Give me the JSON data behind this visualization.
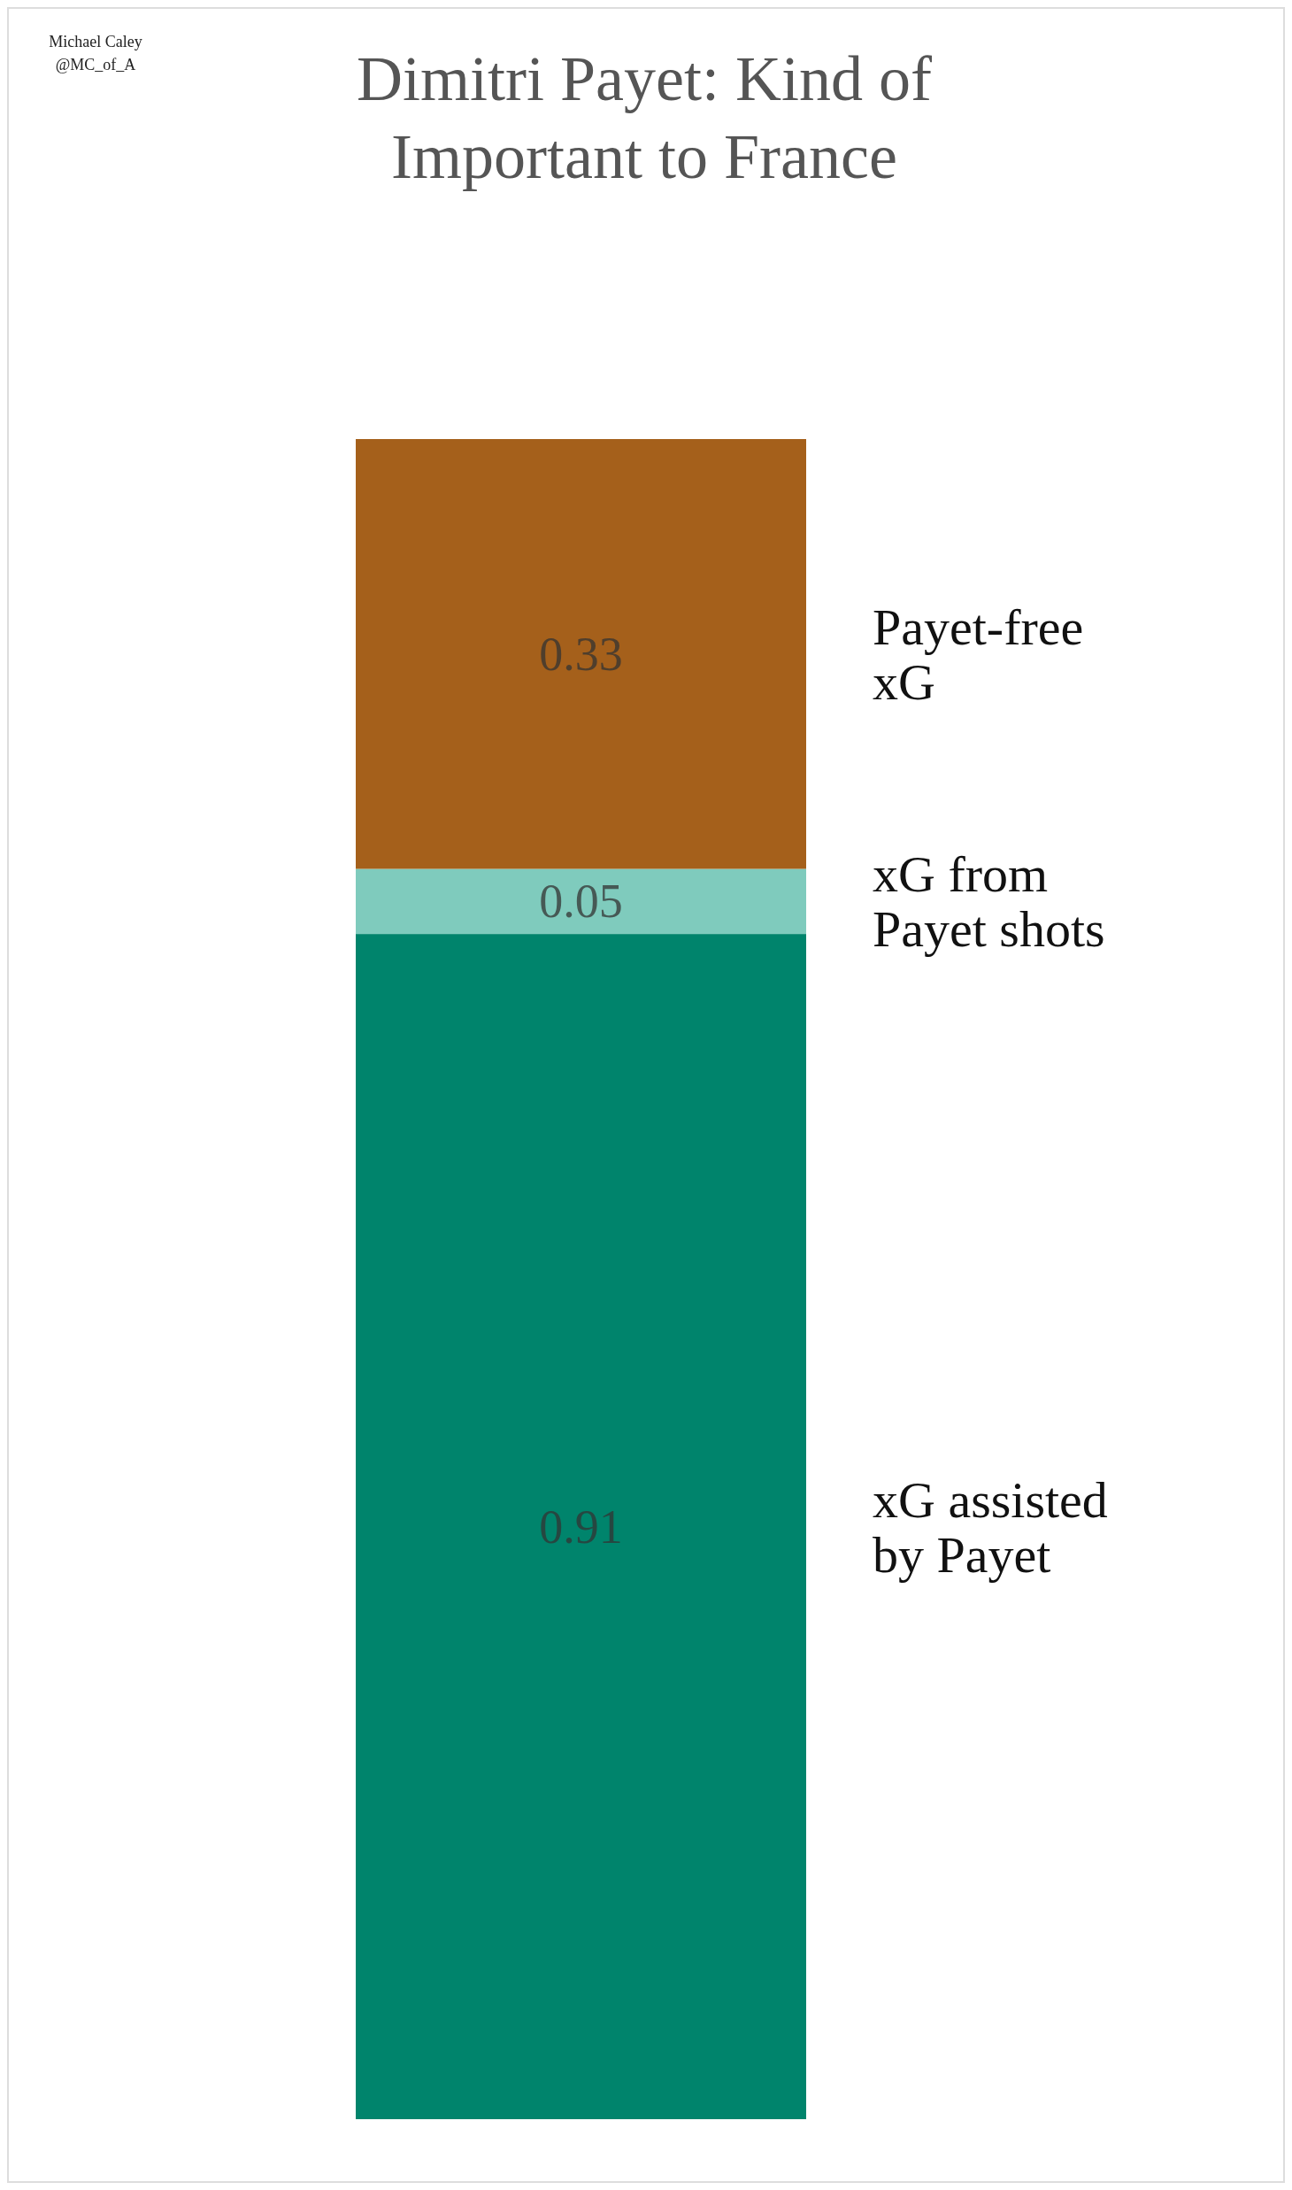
{
  "chart_data": {
    "type": "bar",
    "title": "Dimitri Payet: Kind of Important to France",
    "categories": [
      null
    ],
    "stacked": true,
    "data_labels": true,
    "series": [
      {
        "name": "xG assisted by Payet",
        "color": "#00846c",
        "values": [
          0.91
        ]
      },
      {
        "name": "xG from Payet shots",
        "color": "#7fcbbd",
        "values": [
          0.05
        ]
      },
      {
        "name": "Payet-free xG",
        "color": "#a5601b",
        "values": [
          0.33
        ]
      }
    ],
    "annotations": [
      "Michael Caley",
      "@MC_of_A"
    ]
  }
}
